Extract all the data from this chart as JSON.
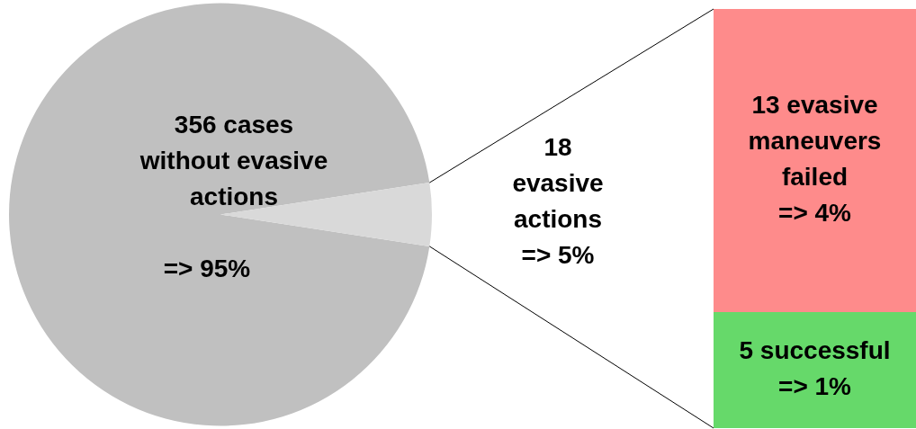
{
  "chart_data": [
    {
      "type": "pie",
      "categories": [
        "356 cases without evasive actions",
        "18 evasive actions"
      ],
      "values": [
        356,
        18
      ],
      "colors": [
        "#c0c0c0",
        "#d9d9d9"
      ],
      "value_labels": [
        "=> 95%",
        "=> 5%"
      ]
    },
    {
      "type": "bar",
      "stacked": true,
      "categories": [
        null
      ],
      "tick_labels": false,
      "series": [
        {
          "color": "#66d96a",
          "values": [
            5
          ],
          "value_labels": [
            "5 successful\n=> 1%"
          ]
        },
        {
          "color": "#fe8b8b",
          "values": [
            13
          ],
          "value_labels": [
            "13 evasive maneuvers failed\n=> 4%"
          ]
        }
      ]
    }
  ]
}
